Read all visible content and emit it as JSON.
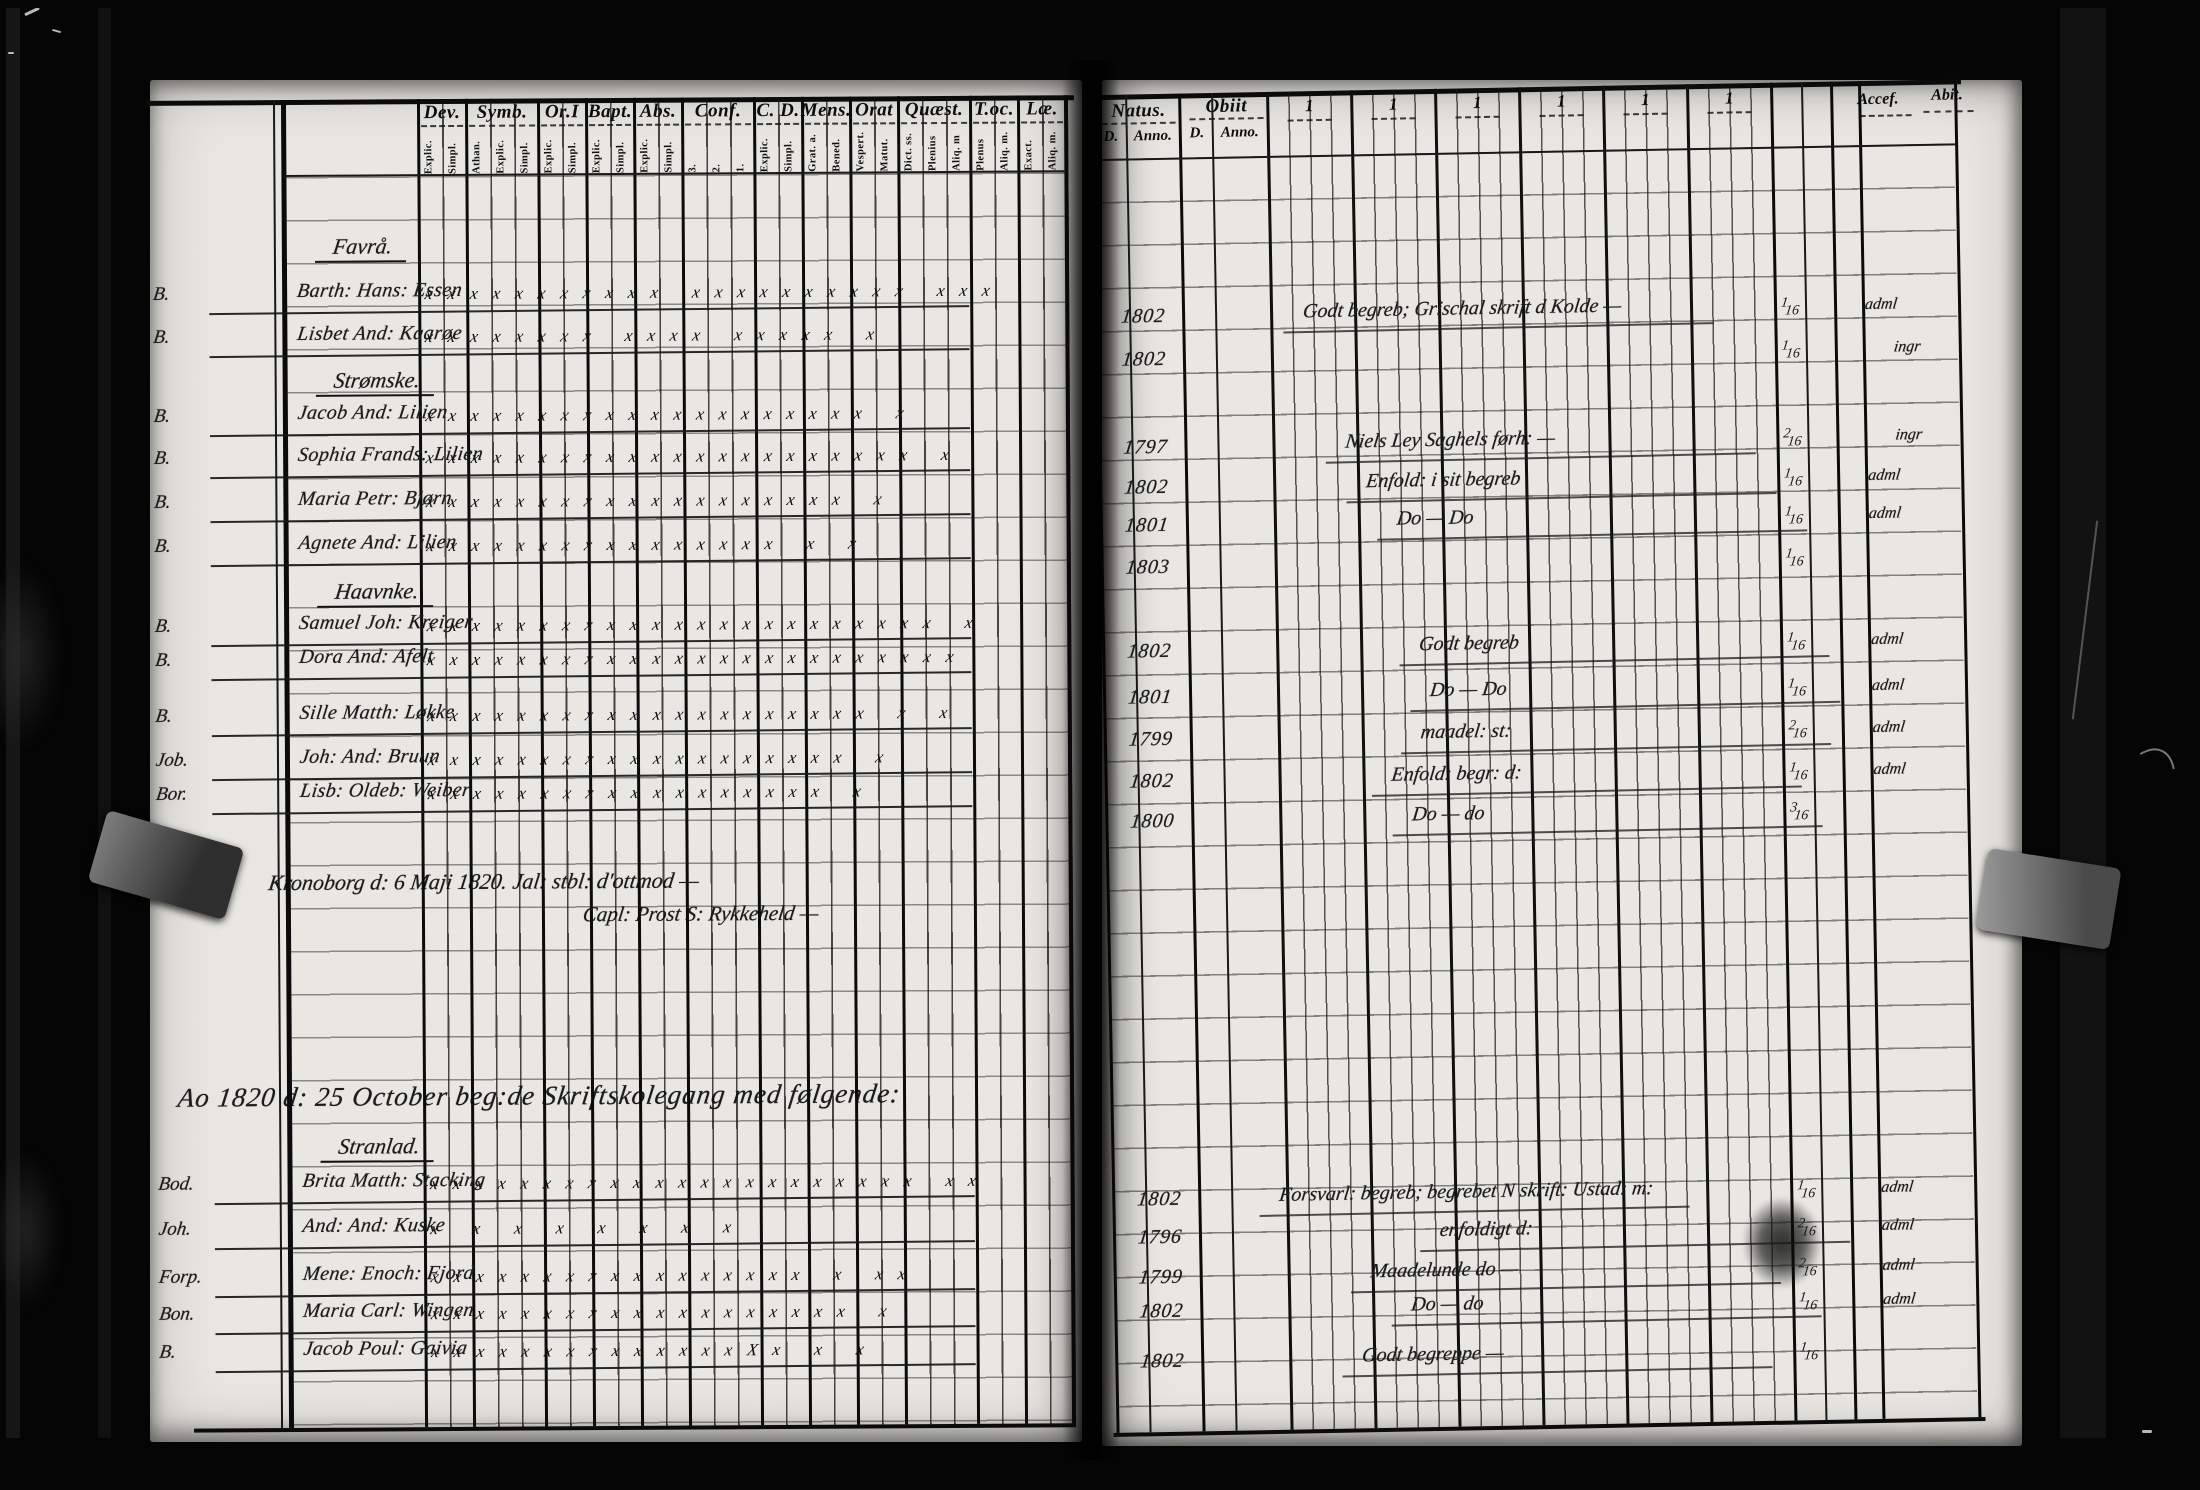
{
  "left_page": {
    "columns": [
      {
        "label": "Dev.",
        "subs": [
          "Explic.",
          "Simpl."
        ]
      },
      {
        "label": "Symb.",
        "subs": [
          "Athan.",
          "Explic.",
          "Simpl."
        ]
      },
      {
        "label": "Or.I",
        "subs": [
          "Explic.",
          "Simpl."
        ]
      },
      {
        "label": "Bapt.",
        "subs": [
          "Explic.",
          "Simpl."
        ]
      },
      {
        "label": "Abs.",
        "subs": [
          "Explic.",
          "Simpl."
        ]
      },
      {
        "label": "Conf.",
        "subs": [
          "3.",
          "2.",
          "1."
        ]
      },
      {
        "label": "C. D.",
        "subs": [
          "Explic.",
          "Simpl."
        ]
      },
      {
        "label": "Mens.",
        "subs": [
          "Grat. a.",
          "Bened."
        ]
      },
      {
        "label": "Orat",
        "subs": [
          "Vespert.",
          "Matut."
        ]
      },
      {
        "label": "Quæst.",
        "subs": [
          "Dict. ss.",
          "Plenius",
          "Aliq. m"
        ]
      },
      {
        "label": "T.oc.",
        "subs": [
          "Plenus",
          "Aliq. m."
        ]
      },
      {
        "label": "Læ.",
        "subs": [
          "Exact.",
          "Aliq. m."
        ]
      }
    ],
    "sections": [
      {
        "heading": "Favrå.",
        "rows": [
          {
            "margin": "B.",
            "name": "Barth: Hans: Essen",
            "marks": "xxxxxxxxxxx xxxxxxxxxx xxx"
          },
          {
            "margin": "B.",
            "name": "Lisbet And: Kaarøe",
            "marks": "xxxxxxxx xxxx xxxxx x"
          }
        ]
      },
      {
        "heading": "Strømske.",
        "rows": [
          {
            "margin": "B.",
            "name": "Jacob And: Lilien",
            "marks": "xxxxxxxxxxxxxxxxxxxx x"
          },
          {
            "margin": "B.",
            "name": "Sophia Frands: Lilien",
            "marks": "xxxxxxxxxxxxxxxxxxxxxx x"
          },
          {
            "margin": "B.",
            "name": "Maria Petr: Bjørn",
            "marks": "xxxxxxxxxxxxxxxxxxx x"
          },
          {
            "margin": "B.",
            "name": "Agnete And: Lilien",
            "marks": "xxxxxxxxxxxxxxxx  x  x"
          }
        ]
      },
      {
        "heading": "Haavnke.",
        "rows": [
          {
            "margin": "B.",
            "name": "Samuel Joh: Kreiger",
            "marks": "xxxxxxxxxxxxxxxxxxxxxxx x"
          },
          {
            "margin": "B.",
            "name": "Dora And: Afelt",
            "marks": "xxxxxxxxxxxxxxxxxxxxxxxx"
          },
          {
            "margin": "B.",
            "name": "Sille Matth: Løkke",
            "marks": "xxxxxxxxxxxxxxxxxxxx x x"
          },
          {
            "margin": "Job.",
            "name": "Joh: And: Bruun",
            "marks": "xxxxxxxxxxxxxxxxxxx  x"
          },
          {
            "margin": "Bor.",
            "name": "Lisb: Oldeb: Weiber",
            "marks": "xxxxxxxxxxxxxxxxxx  x"
          }
        ]
      },
      {
        "heading": "Stranlad.",
        "rows": [
          {
            "margin": "Bod.",
            "name": "Brita Matth: Stacking",
            "marks": "xxxxxxxxxxxxxxxxxxxxxx xx"
          },
          {
            "margin": "Joh.",
            "name": "And: And: Kuske",
            "marks": "x x x x x x  x  x"
          },
          {
            "margin": "Forp.",
            "name": "Mene: Enoch: Fjord",
            "marks": "xxxxxxxxxxxxxxxxx x  xx"
          },
          {
            "margin": "Bon.",
            "name": "Maria Carl: Wingen",
            "marks": "xxxxxxxxxxxxxxxxxxx x"
          },
          {
            "margin": "B.",
            "name": "Jacob Poul: Gaivia",
            "marks": "xxxxxxxxxxxxxxXx x x"
          }
        ]
      }
    ],
    "note": {
      "line1": "Kronoborg d: 6 Maji 1820.  Jal: stbl: d'ottmod —",
      "line2": "Capl: Prost S: Rykkeheld —"
    },
    "year_line": "Ao 1820 d: 25 October beg:de Skriftskolegang med følgende:"
  },
  "right_page": {
    "headers": {
      "natus": "Natus.",
      "obiit": "Obiit",
      "d": "D.",
      "anno": "Anno.",
      "group": "1",
      "acces": "Accef.",
      "abit": "Abit."
    },
    "rows": [
      {
        "anno": "1802",
        "remark": "Godt begreb; Grischal skrift d Kolde —",
        "frac": "1/16",
        "status": "adml"
      },
      {
        "anno": "1802",
        "remark": "",
        "frac": "1/16",
        "status": "ingr"
      },
      {
        "anno": "1797",
        "remark": "Niels Ley Saghels førh: —",
        "frac": "2/16",
        "status": "ingr"
      },
      {
        "anno": "1802",
        "remark": "Enfold: i sit begreb",
        "frac": "1/16",
        "status": "adml"
      },
      {
        "anno": "1801",
        "remark": "Do — Do",
        "frac": "1/16",
        "status": "adml"
      },
      {
        "anno": "1803",
        "remark": "",
        "frac": "1/16",
        "status": ""
      },
      {
        "anno": "1802",
        "remark": "Godt begreb",
        "frac": "1/16",
        "status": "adml"
      },
      {
        "anno": "1801",
        "remark": "Do — Do",
        "frac": "1/16",
        "status": "adml"
      },
      {
        "anno": "1799",
        "remark": "maadel: st:",
        "frac": "2/16",
        "status": "adml"
      },
      {
        "anno": "1802",
        "remark": "Enfold: begr: d:",
        "frac": "1/16",
        "status": "adml"
      },
      {
        "anno": "1800",
        "remark": "Do — do",
        "frac": "3/16",
        "status": ""
      },
      {
        "anno": "1802",
        "remark": "Forsvarl: begreb; begrebet N skrift: Ustad: m:",
        "frac": "1/16",
        "status": "adml"
      },
      {
        "anno": "1796",
        "remark": "enfoldigt d:",
        "frac": "2/16",
        "status": "adml"
      },
      {
        "anno": "1799",
        "remark": "Maadelunde do —",
        "frac": "2/16",
        "status": "adml"
      },
      {
        "anno": "1802",
        "remark": "Do — do",
        "frac": "1/16",
        "status": "adml"
      },
      {
        "anno": "1802",
        "remark": "Godt begreppe —",
        "frac": "1/16",
        "status": ""
      }
    ]
  }
}
